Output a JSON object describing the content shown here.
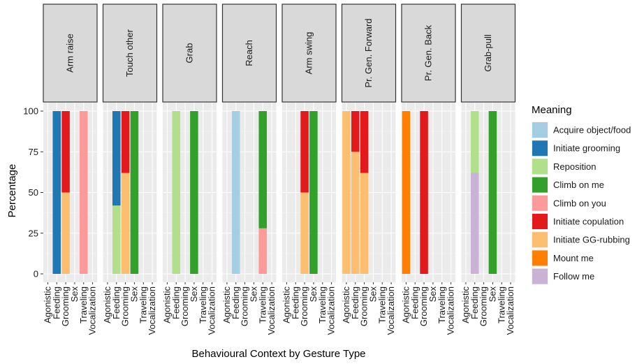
{
  "chart_data": {
    "type": "bar",
    "stacked": true,
    "facet_by": "gesture_type",
    "xlabel": "Behavioural Context by Gesture Type",
    "ylabel": "Percentage",
    "ylim": [
      0,
      100
    ],
    "yticks": [
      0,
      25,
      50,
      75,
      100
    ],
    "categories": [
      "Agonistic",
      "Feeding",
      "Grooming",
      "Sex",
      "Traveling",
      "Vocalization"
    ],
    "grid": true,
    "legend": {
      "title": "Meaning",
      "placement": "right",
      "entries": [
        {
          "label": "Acquire object/food",
          "color": "#a6cee3"
        },
        {
          "label": "Initiate grooming",
          "color": "#1f78b4"
        },
        {
          "label": "Reposition",
          "color": "#b2df8a"
        },
        {
          "label": "Climb on me",
          "color": "#33a02c"
        },
        {
          "label": "Climb on you",
          "color": "#fb9a99"
        },
        {
          "label": "Initiate copulation",
          "color": "#e31a1c"
        },
        {
          "label": "Initiate GG-rubbing",
          "color": "#fdbf6f"
        },
        {
          "label": "Mount me",
          "color": "#ff7f00"
        },
        {
          "label": "Follow me",
          "color": "#cab2d6"
        }
      ]
    },
    "panels": [
      {
        "title": "Arm raise",
        "bars": [
          {
            "category": "Feeding",
            "segments": [
              {
                "meaning": "Initiate grooming",
                "value": 100
              }
            ]
          },
          {
            "category": "Grooming",
            "segments": [
              {
                "meaning": "Initiate GG-rubbing",
                "value": 50
              },
              {
                "meaning": "Initiate copulation",
                "value": 50
              }
            ]
          },
          {
            "category": "Traveling",
            "segments": [
              {
                "meaning": "Climb on you",
                "value": 100
              }
            ]
          }
        ]
      },
      {
        "title": "Touch other",
        "bars": [
          {
            "category": "Feeding",
            "segments": [
              {
                "meaning": "Reposition",
                "value": 42
              },
              {
                "meaning": "Initiate grooming",
                "value": 58
              }
            ]
          },
          {
            "category": "Grooming",
            "segments": [
              {
                "meaning": "Initiate GG-rubbing",
                "value": 62
              },
              {
                "meaning": "Initiate copulation",
                "value": 38
              }
            ]
          },
          {
            "category": "Sex",
            "segments": [
              {
                "meaning": "Climb on me",
                "value": 100
              }
            ]
          }
        ]
      },
      {
        "title": "Grab",
        "bars": [
          {
            "category": "Feeding",
            "segments": [
              {
                "meaning": "Reposition",
                "value": 100
              }
            ]
          },
          {
            "category": "Sex",
            "segments": [
              {
                "meaning": "Climb on me",
                "value": 100
              }
            ]
          }
        ]
      },
      {
        "title": "Reach",
        "bars": [
          {
            "category": "Feeding",
            "segments": [
              {
                "meaning": "Acquire object/food",
                "value": 100
              }
            ]
          },
          {
            "category": "Traveling",
            "segments": [
              {
                "meaning": "Climb on you",
                "value": 28
              },
              {
                "meaning": "Climb on me",
                "value": 72
              }
            ]
          }
        ]
      },
      {
        "title": "Arm swing",
        "bars": [
          {
            "category": "Grooming",
            "segments": [
              {
                "meaning": "Initiate GG-rubbing",
                "value": 50
              },
              {
                "meaning": "Initiate copulation",
                "value": 50
              }
            ]
          },
          {
            "category": "Sex",
            "segments": [
              {
                "meaning": "Climb on me",
                "value": 100
              }
            ]
          }
        ]
      },
      {
        "title": "Pr. Gen. Forward",
        "bars": [
          {
            "category": "Agonistic",
            "segments": [
              {
                "meaning": "Initiate GG-rubbing",
                "value": 100
              }
            ]
          },
          {
            "category": "Feeding",
            "segments": [
              {
                "meaning": "Initiate GG-rubbing",
                "value": 75
              },
              {
                "meaning": "Initiate copulation",
                "value": 25
              }
            ]
          },
          {
            "category": "Grooming",
            "segments": [
              {
                "meaning": "Initiate GG-rubbing",
                "value": 62
              },
              {
                "meaning": "Initiate copulation",
                "value": 38
              }
            ]
          }
        ]
      },
      {
        "title": "Pr. Gen. Back",
        "bars": [
          {
            "category": "Agonistic",
            "segments": [
              {
                "meaning": "Mount me",
                "value": 100
              }
            ]
          },
          {
            "category": "Grooming",
            "segments": [
              {
                "meaning": "Initiate copulation",
                "value": 100
              }
            ]
          }
        ]
      },
      {
        "title": "Grab-pull",
        "bars": [
          {
            "category": "Feeding",
            "segments": [
              {
                "meaning": "Follow me",
                "value": 62
              },
              {
                "meaning": "Reposition",
                "value": 38
              }
            ]
          },
          {
            "category": "Sex",
            "segments": [
              {
                "meaning": "Climb on me",
                "value": 100
              }
            ]
          }
        ]
      }
    ]
  }
}
